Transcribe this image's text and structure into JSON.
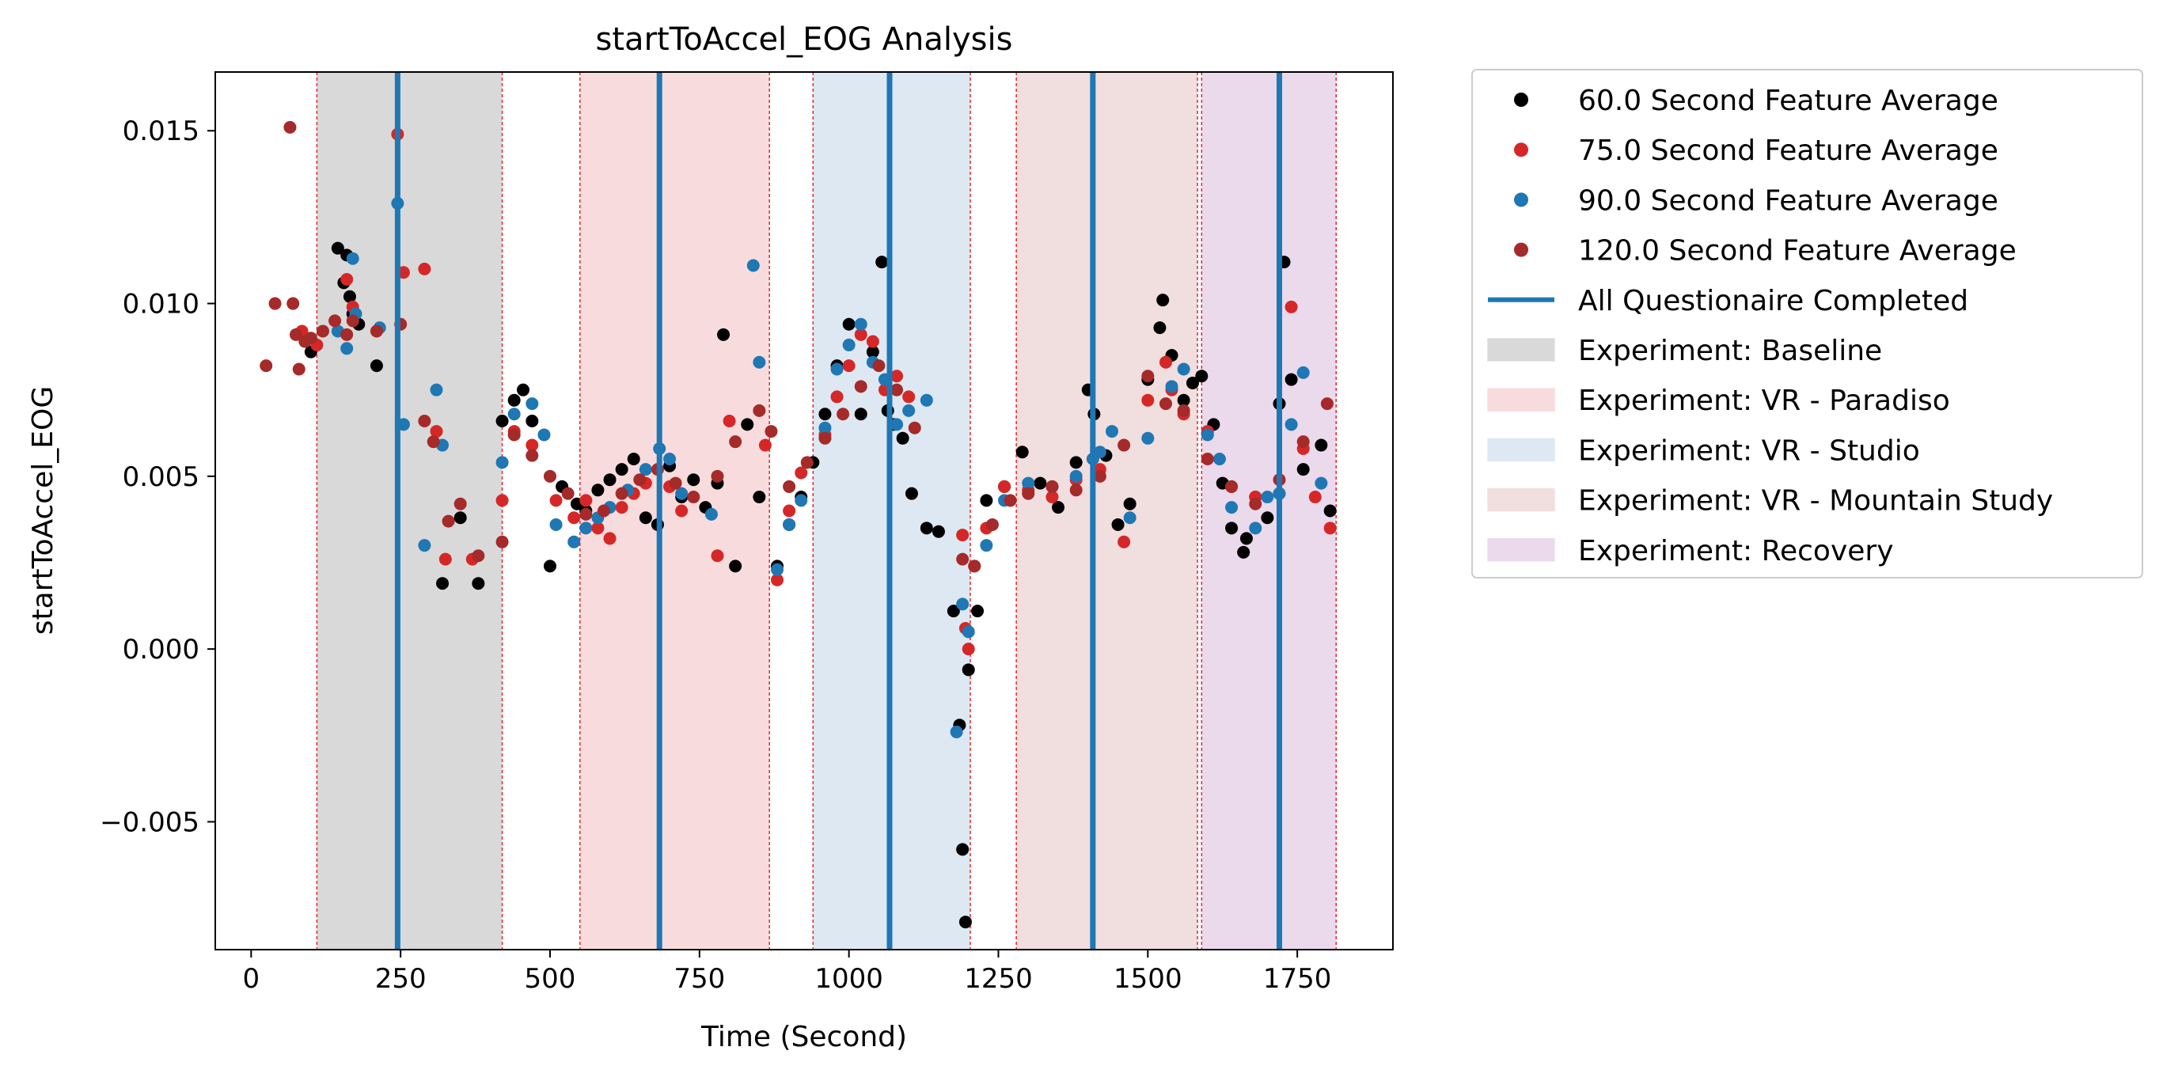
{
  "chart_data": {
    "type": "scatter",
    "title": "startToAccel_EOG Analysis",
    "xlabel": "Time (Second)",
    "ylabel": "startToAccel_EOG",
    "xlim": [
      -60,
      1910
    ],
    "ylim": [
      -0.0087,
      0.0167
    ],
    "x_ticks": [
      0,
      250,
      500,
      750,
      1000,
      1250,
      1500,
      1750
    ],
    "x_tick_labels": [
      "0",
      "250",
      "500",
      "750",
      "1000",
      "1250",
      "1500",
      "1750"
    ],
    "y_ticks": [
      -0.005,
      0.0,
      0.005,
      0.01,
      0.015
    ],
    "y_tick_labels": [
      "−0.005",
      "0.000",
      "0.005",
      "0.010",
      "0.015"
    ],
    "grid": false,
    "legend_position": "outside-right",
    "legend": [
      {
        "label": "60.0 Second Feature Average",
        "kind": "marker",
        "color": "#000000"
      },
      {
        "label": "75.0 Second Feature Average",
        "kind": "marker",
        "color": "#d62728"
      },
      {
        "label": "90.0 Second Feature Average",
        "kind": "marker",
        "color": "#1f77b4"
      },
      {
        "label": "120.0 Second Feature Average",
        "kind": "marker",
        "color": "#a52a2a"
      },
      {
        "label": "All Questionaire Completed",
        "kind": "line",
        "color": "#1f77b4"
      },
      {
        "label": "Experiment: Baseline",
        "kind": "patch",
        "color": "#d9d9d9"
      },
      {
        "label": "Experiment: VR - Paradiso",
        "kind": "patch",
        "color": "#f8dcdd"
      },
      {
        "label": "Experiment: VR - Studio",
        "kind": "patch",
        "color": "#dde8f2"
      },
      {
        "label": "Experiment: VR - Mountain Study",
        "kind": "patch",
        "color": "#f1dede"
      },
      {
        "label": "Experiment: Recovery",
        "kind": "patch",
        "color": "#ebd9ec"
      }
    ],
    "phases": [
      {
        "label": "Experiment: Baseline",
        "start": 110,
        "end": 420,
        "color": "#d9d9d9"
      },
      {
        "label": "Experiment: VR - Paradiso",
        "start": 550,
        "end": 867,
        "color": "#f8dcdd"
      },
      {
        "label": "Experiment: VR - Studio",
        "start": 940,
        "end": 1203,
        "color": "#dde8f2"
      },
      {
        "label": "Experiment: VR - Mountain Study",
        "start": 1280,
        "end": 1583,
        "color": "#f1dede"
      },
      {
        "label": "Experiment: Recovery",
        "start": 1590,
        "end": 1815,
        "color": "#ebd9ec"
      }
    ],
    "boundary_lines": [
      110,
      420,
      550,
      867,
      940,
      1203,
      1280,
      1583,
      1590,
      1815
    ],
    "questionnaire_lines": [
      245,
      683,
      1068,
      1408,
      1720
    ],
    "series": [
      {
        "name": "60.0 Second Feature Average",
        "color": "#000000",
        "x": [
          100,
          145,
          155,
          160,
          165,
          170,
          180,
          210,
          320,
          350,
          380,
          420,
          440,
          455,
          470,
          500,
          520,
          545,
          560,
          580,
          600,
          620,
          640,
          660,
          680,
          700,
          720,
          740,
          760,
          780,
          790,
          810,
          830,
          850,
          880,
          900,
          920,
          940,
          960,
          980,
          1000,
          1020,
          1040,
          1055,
          1065,
          1075,
          1090,
          1105,
          1130,
          1150,
          1175,
          1185,
          1190,
          1195,
          1200,
          1215,
          1230,
          1260,
          1290,
          1320,
          1350,
          1380,
          1400,
          1410,
          1430,
          1450,
          1470,
          1500,
          1520,
          1525,
          1540,
          1560,
          1575,
          1590,
          1610,
          1625,
          1640,
          1660,
          1665,
          1680,
          1700,
          1720,
          1728,
          1740,
          1760,
          1790,
          1805
        ],
        "y": [
          0.0086,
          0.0116,
          0.0106,
          0.0114,
          0.0102,
          0.0097,
          0.0094,
          0.0082,
          0.0019,
          0.0038,
          0.0019,
          0.0066,
          0.0072,
          0.0075,
          0.0066,
          0.0024,
          0.0047,
          0.0042,
          0.004,
          0.0046,
          0.0049,
          0.0052,
          0.0055,
          0.0038,
          0.0036,
          0.0053,
          0.0044,
          0.0049,
          0.0041,
          0.0048,
          0.0091,
          0.0024,
          0.0065,
          0.0044,
          0.0024,
          0.0036,
          0.0044,
          0.0054,
          0.0068,
          0.0082,
          0.0094,
          0.0068,
          0.0086,
          0.0112,
          0.0069,
          0.0065,
          0.0061,
          0.0045,
          0.0035,
          0.0034,
          0.0011,
          -0.0022,
          -0.0058,
          -0.0079,
          -0.0006,
          0.0011,
          0.0043,
          0.0047,
          0.0057,
          0.0048,
          0.0041,
          0.0054,
          0.0075,
          0.0068,
          0.0056,
          0.0036,
          0.0042,
          0.0078,
          0.0093,
          0.0101,
          0.0085,
          0.0072,
          0.0077,
          0.0079,
          0.0065,
          0.0048,
          0.0035,
          0.0028,
          0.0032,
          0.0044,
          0.0038,
          0.0071,
          0.0112,
          0.0078,
          0.0052,
          0.0059,
          0.004
        ],
        "point_count_note": "dense overlapping markers"
      },
      {
        "name": "75.0 Second Feature Average",
        "color": "#d62728",
        "x": [
          85,
          110,
          160,
          170,
          245,
          255,
          290,
          310,
          325,
          370,
          420,
          440,
          470,
          510,
          540,
          560,
          580,
          600,
          620,
          640,
          660,
          700,
          720,
          780,
          800,
          860,
          880,
          900,
          920,
          960,
          980,
          1000,
          1020,
          1040,
          1060,
          1080,
          1100,
          1190,
          1195,
          1200,
          1210,
          1230,
          1260,
          1300,
          1340,
          1380,
          1420,
          1460,
          1500,
          1530,
          1540,
          1560,
          1600,
          1640,
          1680,
          1720,
          1740,
          1760,
          1780,
          1805
        ],
        "y": [
          0.0092,
          0.0088,
          0.0107,
          0.0099,
          0.0149,
          0.0109,
          0.011,
          0.0063,
          0.0026,
          0.0026,
          0.0043,
          0.0063,
          0.0059,
          0.0043,
          0.0038,
          0.0043,
          0.0035,
          0.0032,
          0.0041,
          0.0045,
          0.0048,
          0.0047,
          0.004,
          0.0027,
          0.0066,
          0.0059,
          0.002,
          0.004,
          0.0051,
          0.0062,
          0.0073,
          0.0082,
          0.0091,
          0.0089,
          0.0075,
          0.0079,
          0.0073,
          0.0033,
          0.0006,
          0.0,
          0.0024,
          0.0035,
          0.0047,
          0.0046,
          0.0044,
          0.0049,
          0.0052,
          0.0031,
          0.0072,
          0.0083,
          0.0075,
          0.0068,
          0.0063,
          0.0047,
          0.0044,
          0.0045,
          0.0099,
          0.0058,
          0.0044,
          0.0035
        ]
      },
      {
        "name": "90.0 Second Feature Average",
        "color": "#1f77b4",
        "x": [
          145,
          160,
          170,
          175,
          215,
          245,
          255,
          290,
          310,
          320,
          420,
          440,
          470,
          490,
          510,
          540,
          560,
          580,
          600,
          630,
          660,
          683,
          700,
          720,
          770,
          840,
          850,
          880,
          900,
          920,
          960,
          980,
          1000,
          1020,
          1040,
          1060,
          1080,
          1100,
          1130,
          1180,
          1190,
          1200,
          1230,
          1260,
          1300,
          1340,
          1380,
          1408,
          1420,
          1440,
          1470,
          1500,
          1540,
          1560,
          1600,
          1620,
          1640,
          1680,
          1700,
          1720,
          1740,
          1760,
          1790
        ],
        "y": [
          0.0092,
          0.0087,
          0.0113,
          0.0097,
          0.0093,
          0.0129,
          0.0065,
          0.003,
          0.0075,
          0.0059,
          0.0054,
          0.0068,
          0.0071,
          0.0062,
          0.0036,
          0.0031,
          0.0035,
          0.0038,
          0.0041,
          0.0046,
          0.0052,
          0.0058,
          0.0055,
          0.0045,
          0.0039,
          0.0111,
          0.0083,
          0.0023,
          0.0036,
          0.0043,
          0.0064,
          0.0081,
          0.0088,
          0.0094,
          0.0083,
          0.0078,
          0.0065,
          0.0069,
          0.0072,
          -0.0024,
          0.0013,
          0.0005,
          0.003,
          0.0043,
          0.0048,
          0.0047,
          0.005,
          0.0055,
          0.0057,
          0.0063,
          0.0038,
          0.0061,
          0.0076,
          0.0081,
          0.0062,
          0.0055,
          0.0041,
          0.0035,
          0.0044,
          0.0045,
          0.0065,
          0.008,
          0.0048
        ]
      },
      {
        "name": "120.0 Second Feature Average",
        "color": "#a52a2a",
        "x": [
          25,
          40,
          65,
          70,
          75,
          80,
          90,
          100,
          120,
          140,
          160,
          170,
          210,
          250,
          290,
          305,
          330,
          350,
          380,
          420,
          440,
          470,
          500,
          530,
          560,
          590,
          620,
          650,
          680,
          710,
          740,
          780,
          810,
          850,
          870,
          900,
          930,
          960,
          990,
          1020,
          1050,
          1080,
          1110,
          1190,
          1210,
          1240,
          1270,
          1300,
          1340,
          1380,
          1420,
          1460,
          1500,
          1530,
          1560,
          1600,
          1640,
          1680,
          1720,
          1760,
          1800
        ],
        "y": [
          0.0082,
          0.01,
          0.0151,
          0.01,
          0.0091,
          0.0081,
          0.0089,
          0.009,
          0.0092,
          0.0095,
          0.0091,
          0.0095,
          0.0092,
          0.0094,
          0.0066,
          0.006,
          0.0037,
          0.0042,
          0.0027,
          0.0031,
          0.0062,
          0.0056,
          0.005,
          0.0045,
          0.0039,
          0.004,
          0.0045,
          0.0049,
          0.0052,
          0.0048,
          0.0044,
          0.005,
          0.006,
          0.0069,
          0.0063,
          0.0047,
          0.0054,
          0.0061,
          0.0068,
          0.0076,
          0.0082,
          0.0075,
          0.0064,
          0.0026,
          0.0024,
          0.0036,
          0.0043,
          0.0045,
          0.0047,
          0.0046,
          0.005,
          0.0059,
          0.0079,
          0.0071,
          0.0069,
          0.0055,
          0.0047,
          0.0042,
          0.0049,
          0.006,
          0.0071
        ]
      }
    ]
  }
}
